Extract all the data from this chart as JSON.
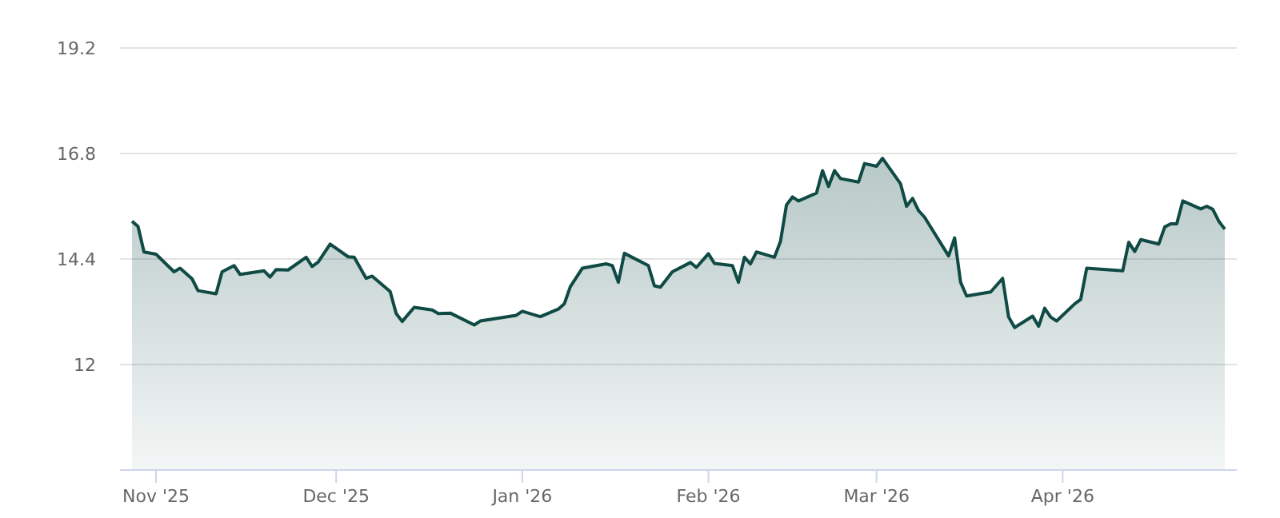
{
  "chart_data": {
    "type": "area",
    "x": [
      "2025-10-28",
      "2025-10-29",
      "2025-10-30",
      "2025-11-01",
      "2025-11-04",
      "2025-11-05",
      "2025-11-07",
      "2025-11-08",
      "2025-11-11",
      "2025-11-12",
      "2025-11-14",
      "2025-11-15",
      "2025-11-19",
      "2025-11-20",
      "2025-11-21",
      "2025-11-23",
      "2025-11-26",
      "2025-11-27",
      "2025-11-28",
      "2025-11-30",
      "2025-12-03",
      "2025-12-04",
      "2025-12-06",
      "2025-12-07",
      "2025-12-10",
      "2025-12-11",
      "2025-12-12",
      "2025-12-14",
      "2025-12-17",
      "2025-12-18",
      "2025-12-20",
      "2025-12-24",
      "2025-12-25",
      "2025-12-31",
      "2026-01-01",
      "2026-01-04",
      "2026-01-07",
      "2026-01-08",
      "2026-01-09",
      "2026-01-11",
      "2026-01-15",
      "2026-01-16",
      "2026-01-17",
      "2026-01-18",
      "2026-01-22",
      "2026-01-23",
      "2026-01-24",
      "2026-01-26",
      "2026-01-29",
      "2026-01-30",
      "2026-02-01",
      "2026-02-02",
      "2026-02-05",
      "2026-02-06",
      "2026-02-07",
      "2026-02-08",
      "2026-02-09",
      "2026-02-12",
      "2026-02-13",
      "2026-02-14",
      "2026-02-15",
      "2026-02-16",
      "2026-02-19",
      "2026-02-20",
      "2026-02-21",
      "2026-02-22",
      "2026-02-23",
      "2026-02-26",
      "2026-02-27",
      "2026-03-01",
      "2026-03-02",
      "2026-03-05",
      "2026-03-06",
      "2026-03-07",
      "2026-03-08",
      "2026-03-09",
      "2026-03-13",
      "2026-03-14",
      "2026-03-15",
      "2026-03-16",
      "2026-03-20",
      "2026-03-22",
      "2026-03-23",
      "2026-03-24",
      "2026-03-27",
      "2026-03-28",
      "2026-03-29",
      "2026-03-30",
      "2026-03-31",
      "2026-04-03",
      "2026-04-04",
      "2026-04-05",
      "2026-04-11",
      "2026-04-12",
      "2026-04-13",
      "2026-04-14",
      "2026-04-17",
      "2026-04-18",
      "2026-04-19",
      "2026-04-20",
      "2026-04-21",
      "2026-04-24",
      "2026-04-25",
      "2026-04-26",
      "2026-04-27",
      "2026-04-28"
    ],
    "series": [
      {
        "color": "#0f4a45",
        "values": [
          15.26,
          15.14,
          14.56,
          14.51,
          14.11,
          14.19,
          13.95,
          13.68,
          13.61,
          14.11,
          14.25,
          14.05,
          14.13,
          13.99,
          14.16,
          14.15,
          14.44,
          14.23,
          14.33,
          14.74,
          14.45,
          14.44,
          13.96,
          14.01,
          13.66,
          13.16,
          12.98,
          13.3,
          13.24,
          13.16,
          13.17,
          12.9,
          12.99,
          13.12,
          13.21,
          13.09,
          13.26,
          13.38,
          13.77,
          14.19,
          14.29,
          14.25,
          13.87,
          14.53,
          14.25,
          13.79,
          13.76,
          14.11,
          14.32,
          14.21,
          14.52,
          14.3,
          14.25,
          13.87,
          14.44,
          14.29,
          14.56,
          14.44,
          14.8,
          15.63,
          15.81,
          15.72,
          15.9,
          16.41,
          16.05,
          16.41,
          16.23,
          16.15,
          16.57,
          16.51,
          16.69,
          16.11,
          15.6,
          15.78,
          15.5,
          15.35,
          14.47,
          14.88,
          13.87,
          13.56,
          13.65,
          13.96,
          13.08,
          12.84,
          13.1,
          12.87,
          13.28,
          13.08,
          12.99,
          13.38,
          13.48,
          14.19,
          14.13,
          14.78,
          14.57,
          14.84,
          14.74,
          15.13,
          15.2,
          15.2,
          15.72,
          15.54,
          15.6,
          15.53,
          15.26,
          15.08
        ]
      }
    ],
    "xlim": [
      "2025-10-26",
      "2026-04-30"
    ],
    "xticks": [
      {
        "value": "2025-11-01",
        "label": "Nov '25"
      },
      {
        "value": "2025-12-01",
        "label": "Dec '25"
      },
      {
        "value": "2026-01-01",
        "label": "Jan '26"
      },
      {
        "value": "2026-02-01",
        "label": "Feb '26"
      },
      {
        "value": "2026-03-01",
        "label": "Mar '26"
      },
      {
        "value": "2026-04-01",
        "label": "Apr '26"
      }
    ],
    "ylim": [
      9.6,
      19.2
    ],
    "yticks": [
      12,
      14.4,
      16.8,
      19.2
    ],
    "grid": "y"
  }
}
